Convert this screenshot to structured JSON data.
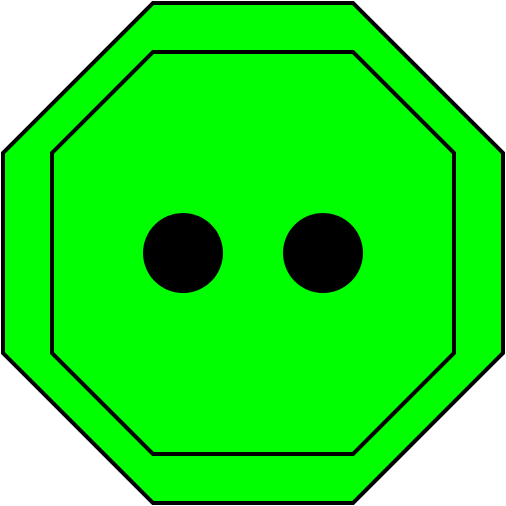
{
  "icon": {
    "name": "octagon-button-icon",
    "colors": {
      "fill": "#00ff00",
      "outline": "#000000",
      "holes": "#000000",
      "background": "#ffffff"
    },
    "shape": "octagon",
    "holes": 2
  }
}
